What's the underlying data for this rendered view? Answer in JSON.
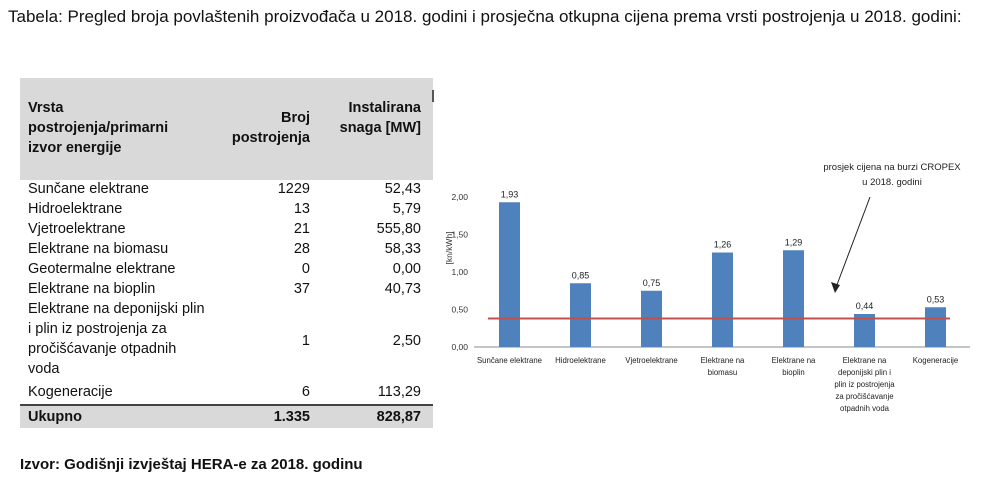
{
  "caption": "Tabela: Pregled broja povlaštenih proizvođača u 2018. godini i prosječna otkupna cijena prema vrsti postrojenja u 2018. godini:",
  "table": {
    "headers": {
      "type": "Vrsta postrojenja/primarni izvor energije",
      "count": "Broj postrojenja",
      "capacity": "Instalirana snaga [MW]"
    },
    "rows": [
      {
        "type": "Sunčane elektrane",
        "count": "1229",
        "capacity": "52,43"
      },
      {
        "type": "Hidroelektrane",
        "count": "13",
        "capacity": "5,79"
      },
      {
        "type": "Vjetroelektrane",
        "count": "21",
        "capacity": "555,80"
      },
      {
        "type": "Elektrane na biomasu",
        "count": "28",
        "capacity": "58,33"
      },
      {
        "type": "Geotermalne elektrane",
        "count": "0",
        "capacity": "0,00"
      },
      {
        "type": "Elektrane na bioplin",
        "count": "37",
        "capacity": "40,73"
      },
      {
        "type": "Elektrane na deponijski plin i plin iz postrojenja za pročišćavanje otpadnih voda",
        "count": "1",
        "capacity": "2,50"
      },
      {
        "type": "Kogeneracije",
        "count": "6",
        "capacity": "113,29"
      }
    ],
    "total": {
      "type": "Ukupno",
      "count": "1.335",
      "capacity": "828,87"
    }
  },
  "source": "Izvor: Godišnji izvještaj HERA-e za 2018. godinu",
  "chart_data": {
    "type": "bar",
    "categories": [
      "Sunčane elektrane",
      "Hidroelektrane",
      "Vjetroelektrane",
      "Elektrane na biomasu",
      "Elektrane na bioplin",
      "Elektrane na deponijski plin i plin iz postrojenja za pročišćavanje otpadnih voda",
      "Kogeneracije"
    ],
    "category_lines": [
      [
        "Sunčane elektrane"
      ],
      [
        "Hidroelektrane"
      ],
      [
        "Vjetroelektrane"
      ],
      [
        "Elektrane na",
        "biomasu"
      ],
      [
        "Elektrane na",
        "bioplin"
      ],
      [
        "Elektrane na",
        "deponijski plin i",
        "plin iz postrojenja",
        "za pročišćavanje",
        "otpadnih voda"
      ],
      [
        "Kogeneracije"
      ]
    ],
    "values": [
      1.93,
      0.85,
      0.75,
      1.26,
      1.29,
      0.44,
      0.53
    ],
    "data_labels": [
      "1,93",
      "0,85",
      "0,75",
      "1,26",
      "1,29",
      "0,44",
      "0,53"
    ],
    "reference_line": {
      "value": 0.38,
      "label_lines": [
        "prosjek cijena na burzi CROPEX",
        "u 2018. godini"
      ]
    },
    "ylabel": "[kn/kWh]",
    "ylim": [
      0,
      2.0
    ],
    "yticks": [
      "0,00",
      "0,50",
      "1,00",
      "1,50",
      "2,00"
    ],
    "grid": false,
    "legend": "none",
    "colors": {
      "bar": "#4f81bd",
      "reference_line": "#c0504d",
      "axis": "#888888"
    }
  }
}
